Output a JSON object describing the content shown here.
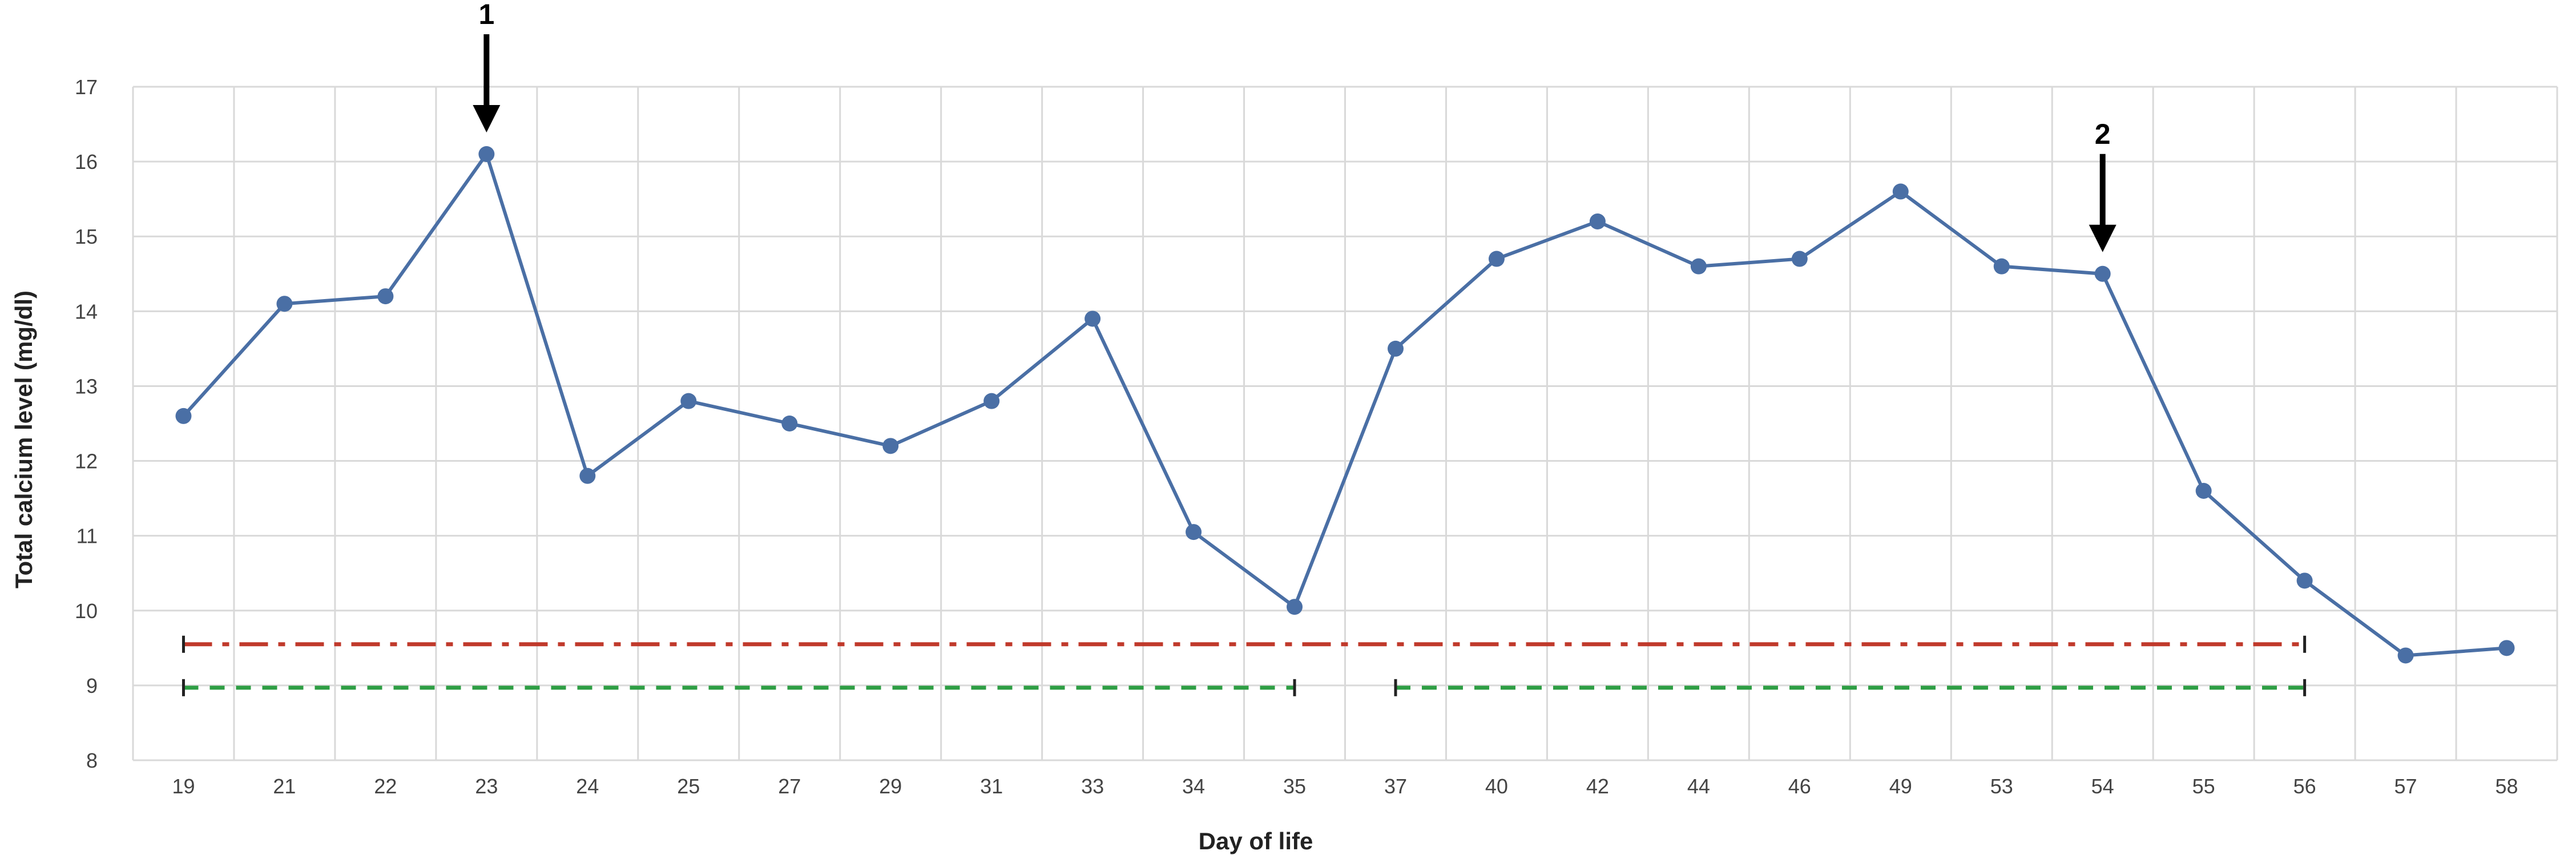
{
  "chart_data": {
    "type": "line",
    "xlabel": "Day of life",
    "ylabel": "Total calcium level (mg/dl)",
    "ylim": [
      8,
      17
    ],
    "yticks": [
      8,
      9,
      10,
      11,
      12,
      13,
      14,
      15,
      16,
      17
    ],
    "grid": true,
    "categories": [
      "19",
      "21",
      "22",
      "23",
      "24",
      "25",
      "27",
      "29",
      "31",
      "33",
      "34",
      "35",
      "37",
      "40",
      "42",
      "44",
      "46",
      "49",
      "53",
      "54",
      "55",
      "56",
      "57",
      "58"
    ],
    "series": [
      {
        "color": "#4a6fa5",
        "values": [
          12.6,
          14.1,
          14.2,
          16.1,
          11.8,
          12.8,
          12.5,
          12.2,
          12.8,
          13.9,
          11.05,
          10.05,
          13.5,
          14.7,
          15.2,
          14.6,
          14.7,
          15.6,
          14.6,
          14.5,
          11.6,
          10.4,
          9.4,
          9.5
        ]
      }
    ],
    "reference_bars": [
      {
        "style": "dash-dot",
        "color": "#c0392b",
        "y": 9.55,
        "from": "19",
        "to": "56"
      },
      {
        "style": "dashed",
        "color": "#2e9e44",
        "y": 8.97,
        "from": "19",
        "to": "35"
      },
      {
        "style": "dashed",
        "color": "#2e9e44",
        "y": 8.97,
        "from": "37",
        "to": "56"
      }
    ],
    "annotations": [
      {
        "label": "1",
        "at": "23"
      },
      {
        "label": "2",
        "at": "54"
      }
    ]
  }
}
